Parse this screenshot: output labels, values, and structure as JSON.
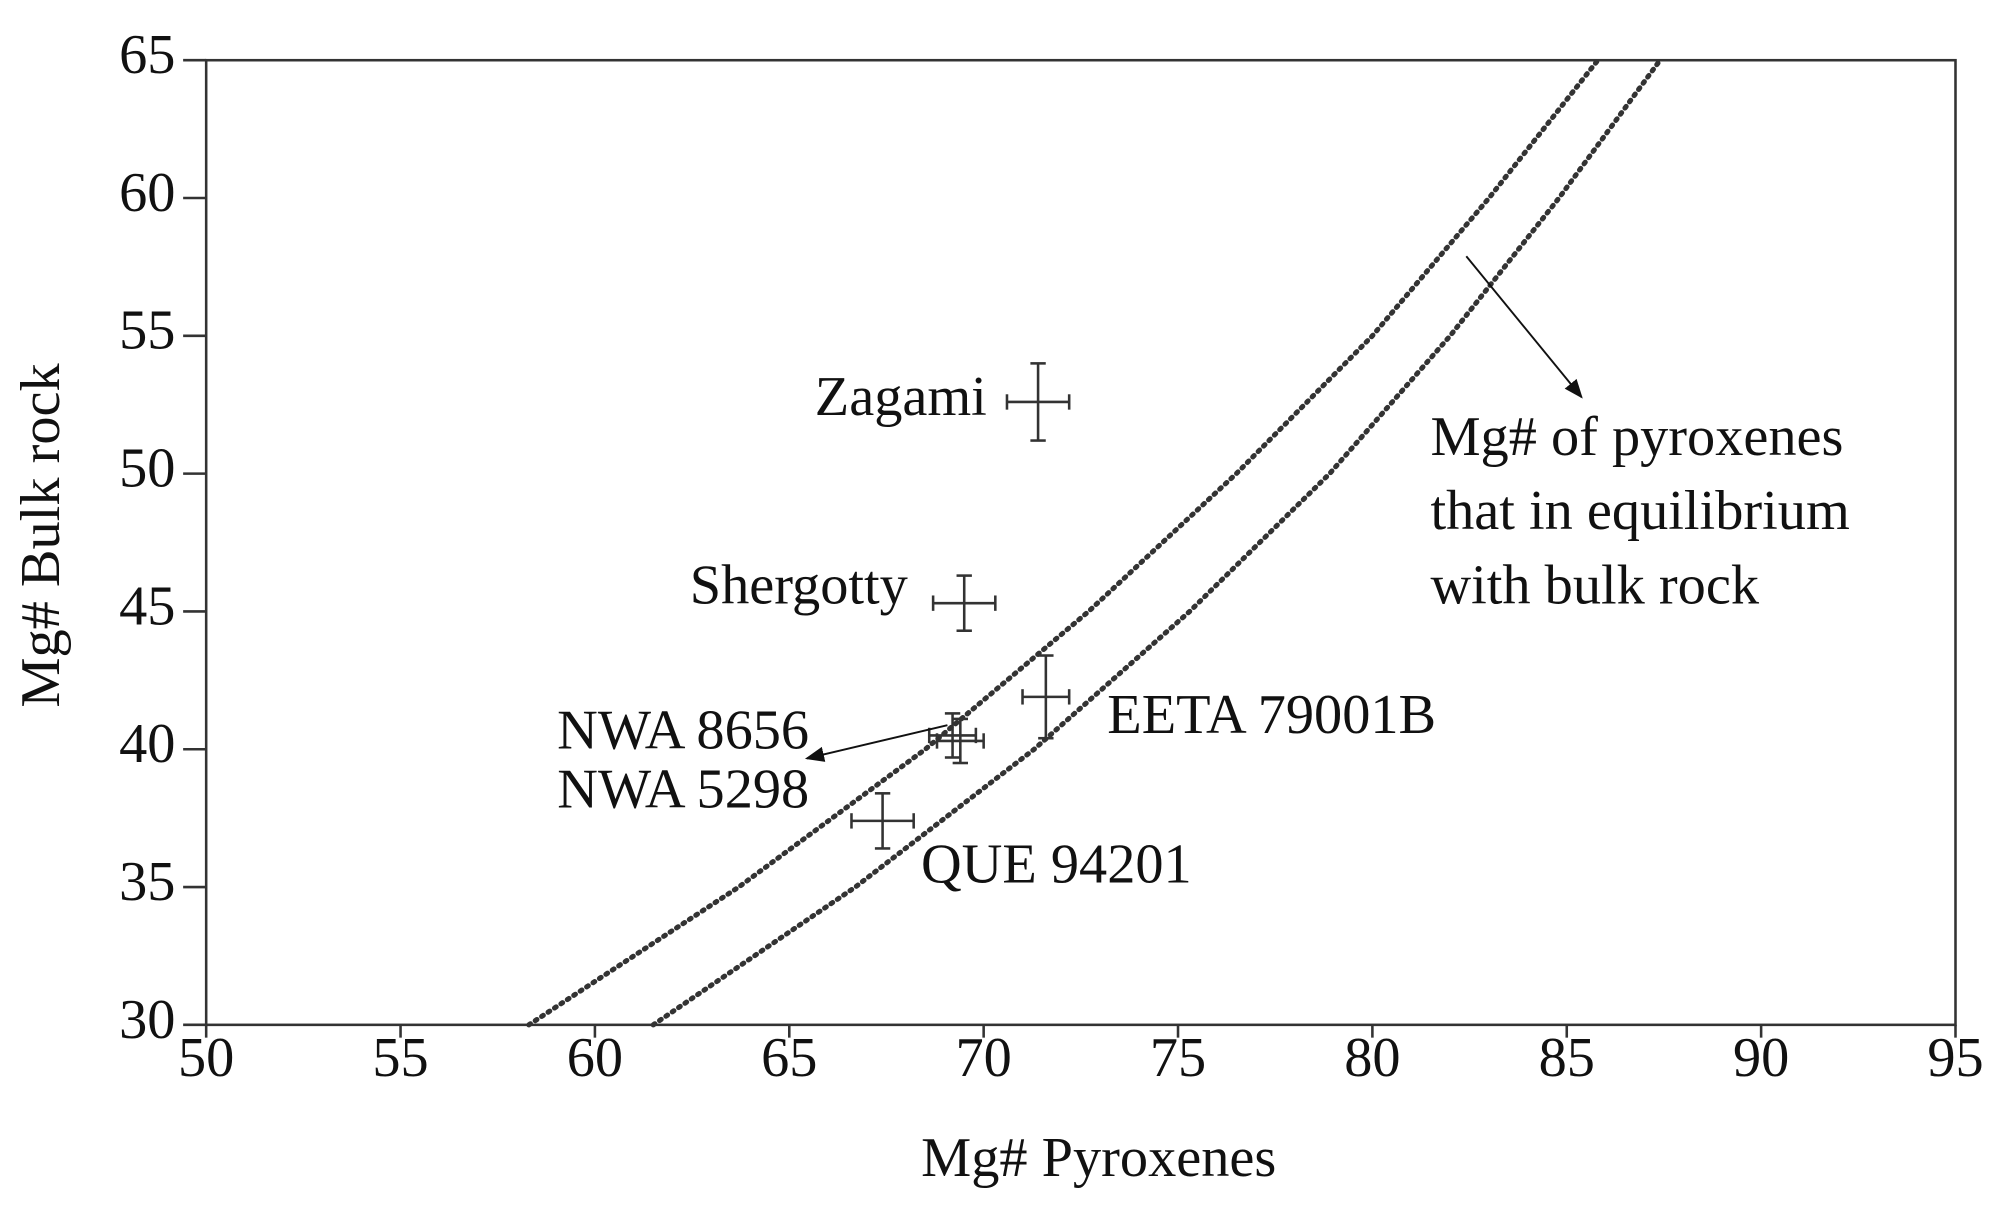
{
  "chart_data": {
    "type": "scatter",
    "xlabel": "Mg# Pyroxenes",
    "ylabel": "Mg# Bulk rock",
    "xlim": [
      50,
      95
    ],
    "ylim": [
      30,
      65
    ],
    "xticks": [
      50,
      55,
      60,
      65,
      70,
      75,
      80,
      85,
      90,
      95
    ],
    "yticks": [
      30,
      35,
      40,
      45,
      50,
      55,
      60,
      65
    ],
    "color": "#333333",
    "points": [
      {
        "label": "Zagami",
        "x": 71.4,
        "y": 52.6,
        "xerr": 0.8,
        "yerr": 1.4
      },
      {
        "label": "Shergotty",
        "x": 69.5,
        "y": 45.3,
        "xerr": 0.8,
        "yerr": 1.0
      },
      {
        "label": "EETA 79001B",
        "x": 71.6,
        "y": 41.9,
        "xerr": 0.6,
        "yerr": 1.5
      },
      {
        "label": "NWA 8656",
        "x": 69.2,
        "y": 40.5,
        "xerr": 0.6,
        "yerr": 0.8
      },
      {
        "label": "NWA 5298",
        "x": 69.4,
        "y": 40.3,
        "xerr": 0.6,
        "yerr": 0.8
      },
      {
        "label": "QUE 94201",
        "x": 67.4,
        "y": 37.4,
        "xerr": 0.8,
        "yerr": 1.0
      }
    ],
    "curves": [
      {
        "x": [
          58.3,
          63.7,
          68.5,
          72.7,
          76.5,
          80.0,
          83.0,
          85.8
        ],
        "y": [
          30,
          35,
          40,
          45,
          50,
          55,
          60,
          65
        ]
      },
      {
        "x": [
          61.5,
          66.7,
          71.3,
          75.3,
          78.9,
          82.0,
          84.8,
          87.4
        ],
        "y": [
          30,
          35,
          40,
          45,
          50,
          55,
          60,
          65
        ]
      }
    ],
    "annotation": [
      "Mg# of pyroxenes",
      "that in equilibrium",
      "with bulk rock"
    ]
  }
}
